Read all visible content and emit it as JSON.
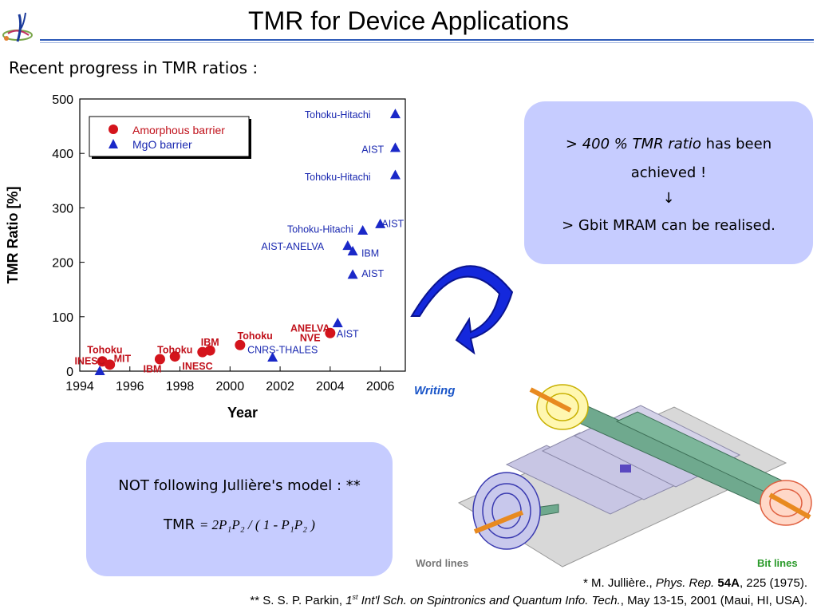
{
  "slide": {
    "title": "TMR for Device Applications",
    "subtitle": "Recent progress in TMR ratios :"
  },
  "callout_right": {
    "line1_prefix": "> ",
    "line1_emph": "400 % TMR ratio",
    "line1_suffix": " has been",
    "line2": "achieved !",
    "arrow": "↓",
    "line3": "> Gbit MRAM can be realised."
  },
  "callout_bottom": {
    "line1": "NOT following Jullière's model : **",
    "formula_lhs": "TMR",
    "formula_rhs": "= 2P₁P₂ / ( 1 - P₁P₂ )"
  },
  "mram": {
    "writing_label": "Writing",
    "word_lines_label": "Word lines",
    "bit_lines_label": "Bit lines"
  },
  "references": {
    "ref1": {
      "prefix": "* M. Jullière., ",
      "journal": "Phys. Rep.",
      "volume": "54A",
      "suffix": ", 225 (1975)."
    },
    "ref2": {
      "prefix": "** S. S. P. Parkin, ",
      "ordinal": "1",
      "ordinal_sup": "st",
      "venue": " Int'l Sch. on Spintronics and Quantum Info. Tech.",
      "suffix": ", May 13-15, 2001 (Maui, HI, USA)."
    }
  },
  "colors": {
    "amorphous": "#d4141c",
    "mgo": "#1a28c8",
    "label_amorphous": "#c0101a",
    "label_mgo": "#1a28b0",
    "callout_bg": "#c6ccff"
  },
  "chart_data": {
    "type": "scatter",
    "title": "",
    "xlabel": "Year",
    "ylabel": "TMR Ratio [%]",
    "xlim": [
      1994,
      2007
    ],
    "ylim": [
      0,
      500
    ],
    "xticks": [
      1994,
      1996,
      1998,
      2000,
      2002,
      2004,
      2006
    ],
    "yticks": [
      0,
      100,
      200,
      300,
      400,
      500
    ],
    "grid": false,
    "legend": {
      "position": "top-left",
      "entries": [
        {
          "label": "Amorphous barrier",
          "marker": "circle"
        },
        {
          "label": "MgO barrier",
          "marker": "triangle"
        }
      ]
    },
    "series": [
      {
        "name": "Amorphous barrier",
        "points": [
          {
            "x": 1994.9,
            "y": 18
          },
          {
            "x": 1995.2,
            "y": 12
          },
          {
            "x": 1997.2,
            "y": 22
          },
          {
            "x": 1997.8,
            "y": 27
          },
          {
            "x": 1998.9,
            "y": 35
          },
          {
            "x": 1999.2,
            "y": 38
          },
          {
            "x": 2000.4,
            "y": 48
          },
          {
            "x": 2004.0,
            "y": 70
          }
        ],
        "labels": [
          {
            "text": "Tohoku",
            "x": 1995.0,
            "y": 40
          },
          {
            "text": "INESC",
            "x": 1994.4,
            "y": 20
          },
          {
            "text": "MIT",
            "x": 1995.7,
            "y": 24
          },
          {
            "text": "Tohoku",
            "x": 1997.8,
            "y": 40
          },
          {
            "text": "IBM",
            "x": 1996.9,
            "y": 5
          },
          {
            "text": "IBM",
            "x": 1999.2,
            "y": 54
          },
          {
            "text": "INESC",
            "x": 1998.7,
            "y": 10
          },
          {
            "text": "Tohoku",
            "x": 2001.0,
            "y": 66
          },
          {
            "text": "ANELVA",
            "x": 2003.2,
            "y": 80
          },
          {
            "text": "NVE",
            "x": 2003.2,
            "y": 62
          }
        ]
      },
      {
        "name": "MgO barrier",
        "points": [
          {
            "x": 1994.8,
            "y": 0
          },
          {
            "x": 2001.7,
            "y": 25
          },
          {
            "x": 2004.3,
            "y": 88
          },
          {
            "x": 2004.9,
            "y": 177
          },
          {
            "x": 2004.9,
            "y": 220
          },
          {
            "x": 2004.7,
            "y": 230
          },
          {
            "x": 2005.3,
            "y": 258
          },
          {
            "x": 2006.0,
            "y": 270
          },
          {
            "x": 2006.6,
            "y": 360
          },
          {
            "x": 2006.6,
            "y": 410
          },
          {
            "x": 2006.6,
            "y": 472
          }
        ],
        "labels": [
          {
            "text": "CNRS-THALES",
            "x": 2002.1,
            "y": 40
          },
          {
            "text": "AIST",
            "x": 2004.7,
            "y": 70
          },
          {
            "text": "AIST",
            "x": 2005.7,
            "y": 180
          },
          {
            "text": "IBM",
            "x": 2005.6,
            "y": 218
          },
          {
            "text": "AIST-ANELVA",
            "x": 2002.5,
            "y": 230
          },
          {
            "text": "Tohoku-Hitachi",
            "x": 2003.6,
            "y": 262
          },
          {
            "text": "AIST",
            "x": 2006.5,
            "y": 272
          },
          {
            "text": "Tohoku-Hitachi",
            "x": 2004.3,
            "y": 358
          },
          {
            "text": "AIST",
            "x": 2005.7,
            "y": 408
          },
          {
            "text": "Tohoku-Hitachi",
            "x": 2004.3,
            "y": 472
          }
        ]
      }
    ]
  }
}
